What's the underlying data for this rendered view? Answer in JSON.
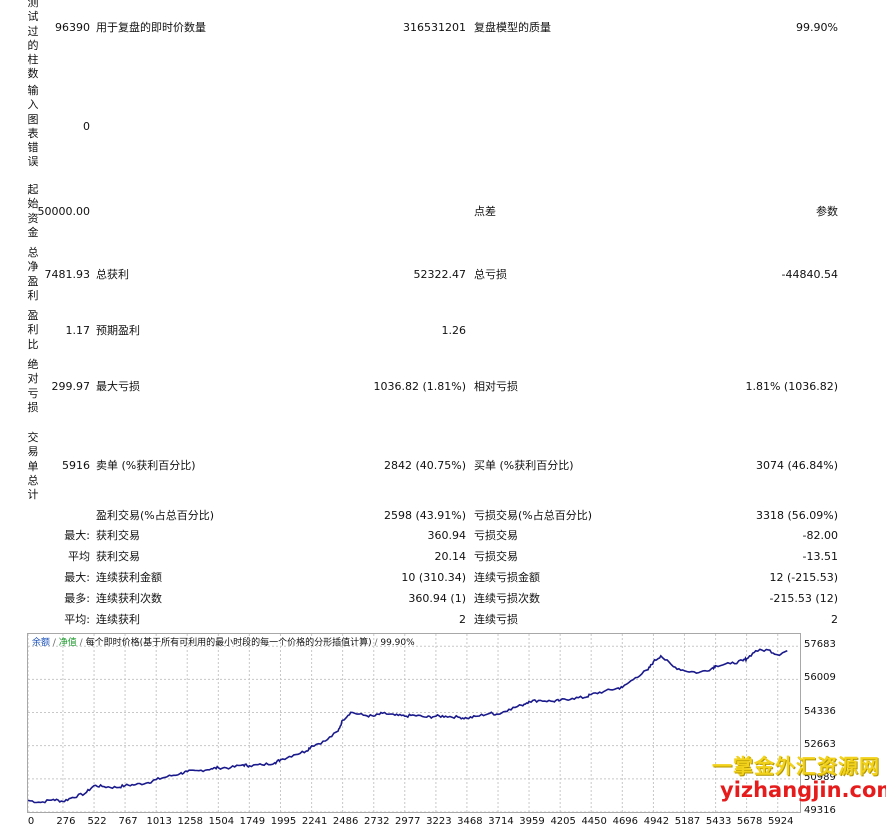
{
  "labels": {
    "bars_tested": "测试过的柱数",
    "chart_errors": "输入图表错误",
    "initial_deposit": "起始资金",
    "net_profit": "总净盈利",
    "profit_factor": "盈利比",
    "absolute_drawdown": "绝对亏损",
    "total_trades": "交易单总计"
  },
  "stats": {
    "bars_tested": "96390",
    "ticks_label": "用于复盘的即时价数量",
    "ticks_value": "316531201",
    "quality_label": "复盘模型的质量",
    "quality_value": "99.90%",
    "chart_errors": "0",
    "initial_deposit": "50000.00",
    "spread_label": "点差",
    "spread_value": "参数",
    "net_profit": "7481.93",
    "gross_profit_label": "总获利",
    "gross_profit_value": "52322.47",
    "gross_loss_label": "总亏损",
    "gross_loss_value": "-44840.54",
    "profit_factor": "1.17",
    "expected_payoff_label": "预期盈利",
    "expected_payoff_value": "1.26",
    "absolute_drawdown": "299.97",
    "maximal_drawdown_label": "最大亏损",
    "maximal_drawdown_value": "1036.82 (1.81%)",
    "relative_drawdown_label": "相对亏损",
    "relative_drawdown_value": "1.81% (1036.82)",
    "total_trades": "5916",
    "short_positions_label": "卖单 (%获利百分比)",
    "short_positions_value": "2842 (40.75%)",
    "long_positions_label": "买单 (%获利百分比)",
    "long_positions_value": "3074 (46.84%)",
    "profit_trades_label": "盈利交易(%占总百分比)",
    "profit_trades_value": "2598 (43.91%)",
    "loss_trades_label": "亏损交易(%占总百分比)",
    "loss_trades_value": "3318 (56.09%)",
    "largest_prefix": "最大:",
    "largest_profit_label": "获利交易",
    "largest_profit_value": "360.94",
    "largest_loss_label": "亏损交易",
    "largest_loss_value": "-82.00",
    "average_prefix": "平均",
    "average_profit_label": "获利交易",
    "average_profit_value": "20.14",
    "average_loss_label": "亏损交易",
    "average_loss_value": "-13.51",
    "max_cons_prefix": "最大:",
    "max_cons_wins_label": "连续获利金额",
    "max_cons_wins_value": "10 (310.34)",
    "max_cons_losses_label": "连续亏损金额",
    "max_cons_losses_value": "12 (-215.53)",
    "maximal_cons_prefix": "最多:",
    "maximal_cons_profit_label": "连续获利次数",
    "maximal_cons_profit_value": "360.94 (1)",
    "maximal_cons_loss_label": "连续亏损次数",
    "maximal_cons_loss_value": "-215.53 (12)",
    "avg_cons_prefix": "平均:",
    "avg_cons_wins_label": "连续获利",
    "avg_cons_wins_value": "2",
    "avg_cons_losses_label": "连续亏损",
    "avg_cons_losses_value": "2"
  },
  "chart_caption": {
    "balance": "余额",
    "sep1": " / ",
    "equity": "净值",
    "sep2": " / ",
    "model": "每个即时价格(基于所有可利用的最小时段的每一个价格的分形插值计算)",
    "sep3": " / ",
    "quality": "99.90%"
  },
  "colors": {
    "line": "#1a1a8c",
    "grid": "#c8c8c8",
    "caption_balance": "#1a4fb8",
    "caption_equity": "#1a9a2a"
  },
  "watermark": {
    "line1": "一掌金外汇资源网",
    "line2": "yizhangjin.com"
  },
  "chart_data": {
    "type": "line",
    "title": "",
    "xlabel": "",
    "ylabel": "",
    "xlim": [
      0,
      6100
    ],
    "ylim": [
      49316,
      58300
    ],
    "x_ticks": [
      "0",
      "276",
      "522",
      "767",
      "1013",
      "1258",
      "1504",
      "1749",
      "1995",
      "2241",
      "2486",
      "2732",
      "2977",
      "3223",
      "3468",
      "3714",
      "3959",
      "4205",
      "4450",
      "4696",
      "4942",
      "5187",
      "5433",
      "5678",
      "5924"
    ],
    "y_ticks": [
      "57683",
      "56009",
      "54336",
      "52663",
      "50989",
      "49316"
    ],
    "grid": true,
    "legend": "top-left caption",
    "series": [
      {
        "x": [
          0,
          100,
          200,
          276,
          350,
          450,
          522,
          600,
          700,
          767,
          850,
          950,
          1013,
          1100,
          1200,
          1258,
          1350,
          1450,
          1504,
          1600,
          1700,
          1749,
          1850,
          1950,
          1995,
          2100,
          2200,
          2241,
          2350,
          2450,
          2486,
          2550,
          2650,
          2732,
          2800,
          2900,
          2977,
          3050,
          3150,
          3223,
          3300,
          3400,
          3468,
          3550,
          3650,
          3714,
          3800,
          3900,
          3959,
          4050,
          4150,
          4205,
          4300,
          4400,
          4450,
          4550,
          4650,
          4696,
          4800,
          4900,
          4942,
          5000,
          5100,
          5187,
          5300,
          5400,
          5433,
          5550,
          5650,
          5678,
          5750,
          5850,
          5924,
          6000
        ],
        "y": [
          49900,
          49800,
          49950,
          49850,
          50050,
          50250,
          50650,
          50600,
          50550,
          50650,
          50700,
          50800,
          50950,
          51100,
          51250,
          51350,
          51400,
          51500,
          51550,
          51550,
          51700,
          51650,
          51700,
          51800,
          51950,
          52200,
          52400,
          52650,
          52900,
          53400,
          53950,
          54350,
          54200,
          54150,
          54300,
          54200,
          54150,
          54200,
          54100,
          54150,
          54150,
          54100,
          54050,
          54150,
          54300,
          54250,
          54500,
          54700,
          54900,
          54950,
          54900,
          54950,
          55050,
          55100,
          55250,
          55400,
          55550,
          55600,
          56100,
          56500,
          56900,
          57200,
          56650,
          56450,
          56350,
          56550,
          56700,
          56800,
          56950,
          57050,
          57450,
          57500,
          57250,
          57450
        ]
      }
    ]
  }
}
